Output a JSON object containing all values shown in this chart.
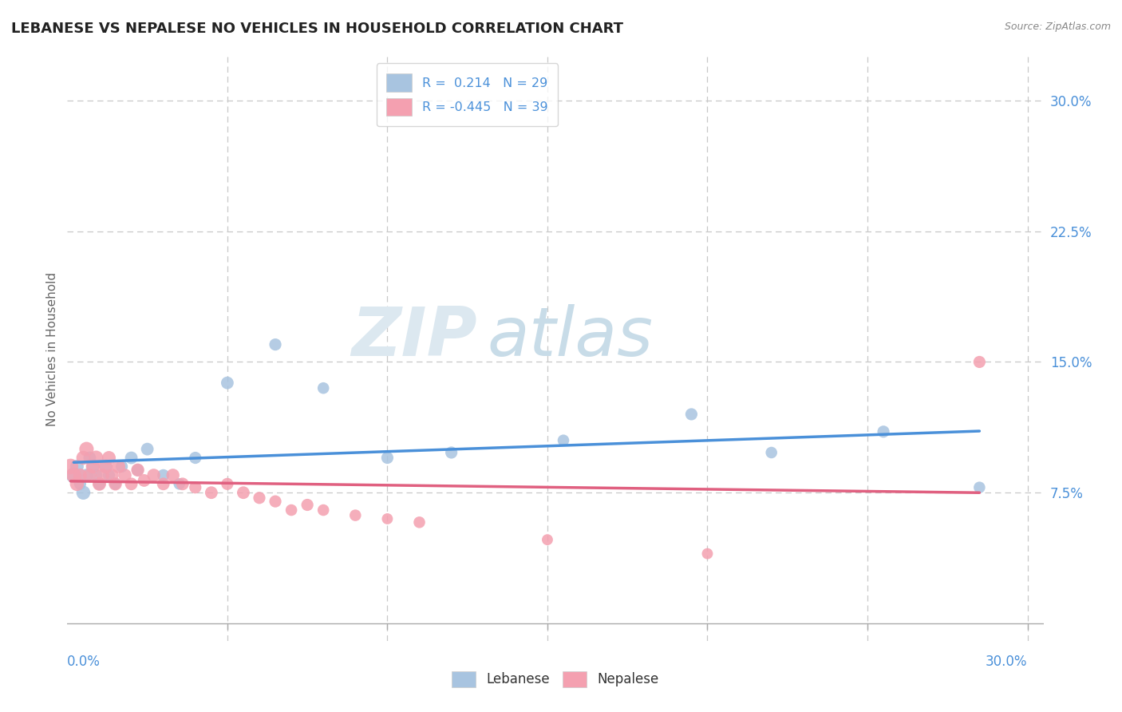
{
  "title": "LEBANESE VS NEPALESE NO VEHICLES IN HOUSEHOLD CORRELATION CHART",
  "source": "Source: ZipAtlas.com",
  "ylabel": "No Vehicles in Household",
  "xlim": [
    0.0,
    0.305
  ],
  "ylim": [
    -0.01,
    0.325
  ],
  "yticks": [
    0.075,
    0.15,
    0.225,
    0.3
  ],
  "ytick_labels": [
    "7.5%",
    "15.0%",
    "22.5%",
    "30.0%"
  ],
  "x_gridlines": [
    0.05,
    0.1,
    0.15,
    0.2,
    0.25,
    0.3
  ],
  "legend_r_lebanese": "R =  0.214",
  "legend_n_lebanese": "N = 29",
  "legend_r_nepalese": "R = -0.445",
  "legend_n_nepalese": "N = 39",
  "lebanese_color": "#a8c4e0",
  "nepalese_color": "#f4a0b0",
  "lebanese_line_color": "#4a90d9",
  "nepalese_line_color": "#e06080",
  "background_color": "#ffffff",
  "watermark_zip": "ZIP",
  "watermark_atlas": "atlas",
  "lebanese_x": [
    0.002,
    0.003,
    0.004,
    0.005,
    0.006,
    0.007,
    0.008,
    0.009,
    0.01,
    0.012,
    0.013,
    0.015,
    0.017,
    0.02,
    0.022,
    0.025,
    0.03,
    0.035,
    0.04,
    0.05,
    0.065,
    0.08,
    0.1,
    0.12,
    0.155,
    0.195,
    0.22,
    0.255,
    0.285
  ],
  "lebanese_y": [
    0.085,
    0.09,
    0.08,
    0.075,
    0.085,
    0.095,
    0.09,
    0.085,
    0.08,
    0.09,
    0.085,
    0.08,
    0.09,
    0.095,
    0.088,
    0.1,
    0.085,
    0.08,
    0.095,
    0.138,
    0.16,
    0.135,
    0.095,
    0.098,
    0.105,
    0.12,
    0.098,
    0.11,
    0.078
  ],
  "lebanese_sizes": [
    200,
    150,
    120,
    160,
    140,
    130,
    140,
    130,
    120,
    140,
    120,
    110,
    120,
    130,
    120,
    130,
    120,
    110,
    120,
    130,
    120,
    110,
    120,
    120,
    110,
    120,
    110,
    120,
    110
  ],
  "nepalese_x": [
    0.001,
    0.002,
    0.003,
    0.004,
    0.005,
    0.006,
    0.007,
    0.008,
    0.009,
    0.01,
    0.011,
    0.012,
    0.013,
    0.014,
    0.015,
    0.016,
    0.018,
    0.02,
    0.022,
    0.024,
    0.027,
    0.03,
    0.033,
    0.036,
    0.04,
    0.045,
    0.05,
    0.055,
    0.06,
    0.065,
    0.07,
    0.075,
    0.08,
    0.09,
    0.1,
    0.11,
    0.15,
    0.2,
    0.285
  ],
  "nepalese_y": [
    0.09,
    0.085,
    0.08,
    0.085,
    0.095,
    0.1,
    0.085,
    0.09,
    0.095,
    0.08,
    0.085,
    0.09,
    0.095,
    0.085,
    0.08,
    0.09,
    0.085,
    0.08,
    0.088,
    0.082,
    0.085,
    0.08,
    0.085,
    0.08,
    0.078,
    0.075,
    0.08,
    0.075,
    0.072,
    0.07,
    0.065,
    0.068,
    0.065,
    0.062,
    0.06,
    0.058,
    0.048,
    0.04,
    0.15
  ],
  "nepalese_sizes": [
    200,
    180,
    160,
    150,
    160,
    170,
    150,
    160,
    170,
    150,
    150,
    160,
    150,
    140,
    140,
    150,
    140,
    130,
    140,
    130,
    140,
    130,
    140,
    130,
    120,
    130,
    120,
    130,
    120,
    120,
    110,
    120,
    110,
    110,
    100,
    110,
    100,
    100,
    120
  ]
}
